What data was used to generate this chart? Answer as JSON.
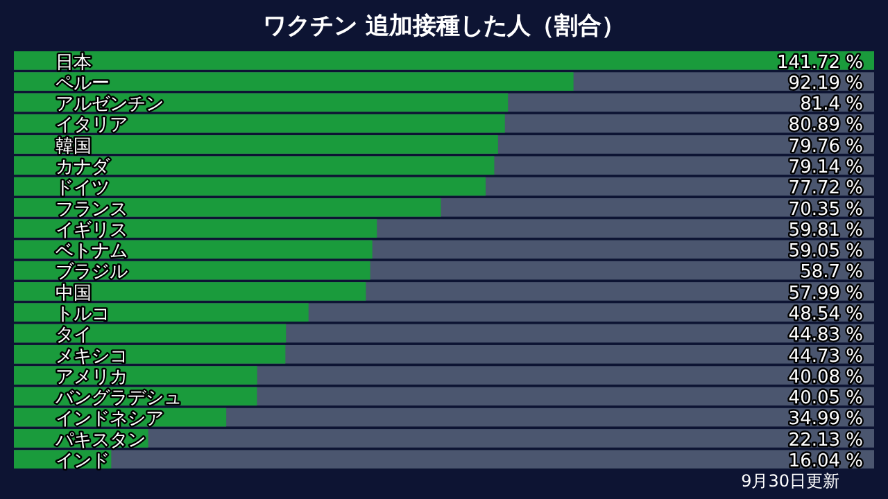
{
  "chart_data": {
    "type": "bar",
    "orientation": "horizontal",
    "title": "ワクチン 追加接種した人（割合）",
    "categories": [
      "日本",
      "ペルー",
      "アルゼンチン",
      "イタリア",
      "韓国",
      "カナダ",
      "ドイツ",
      "フランス",
      "イギリス",
      "ベトナム",
      "ブラジル",
      "中国",
      "トルコ",
      "タイ",
      "メキシコ",
      "アメリカ",
      "バングラデシュ",
      "インドネシア",
      "パキスタン",
      "インド"
    ],
    "values": [
      141.72,
      92.19,
      81.4,
      80.89,
      79.76,
      79.14,
      77.72,
      70.35,
      59.81,
      59.05,
      58.7,
      57.99,
      48.54,
      44.83,
      44.73,
      40.08,
      40.05,
      34.99,
      22.13,
      16.04
    ],
    "value_labels": [
      "141.72 %",
      "92.19 %",
      "81.4 %",
      "80.89 %",
      "79.76 %",
      "79.14 %",
      "77.72 %",
      "70.35 %",
      "59.81 %",
      "59.05 %",
      "58.7 %",
      "57.99 %",
      "48.54 %",
      "44.83 %",
      "44.73 %",
      "40.08 %",
      "40.05 %",
      "34.99 %",
      "22.13 %",
      "16.04 %"
    ],
    "color": "#1a9b3c",
    "annotations": [
      "9月30日更新"
    ]
  }
}
